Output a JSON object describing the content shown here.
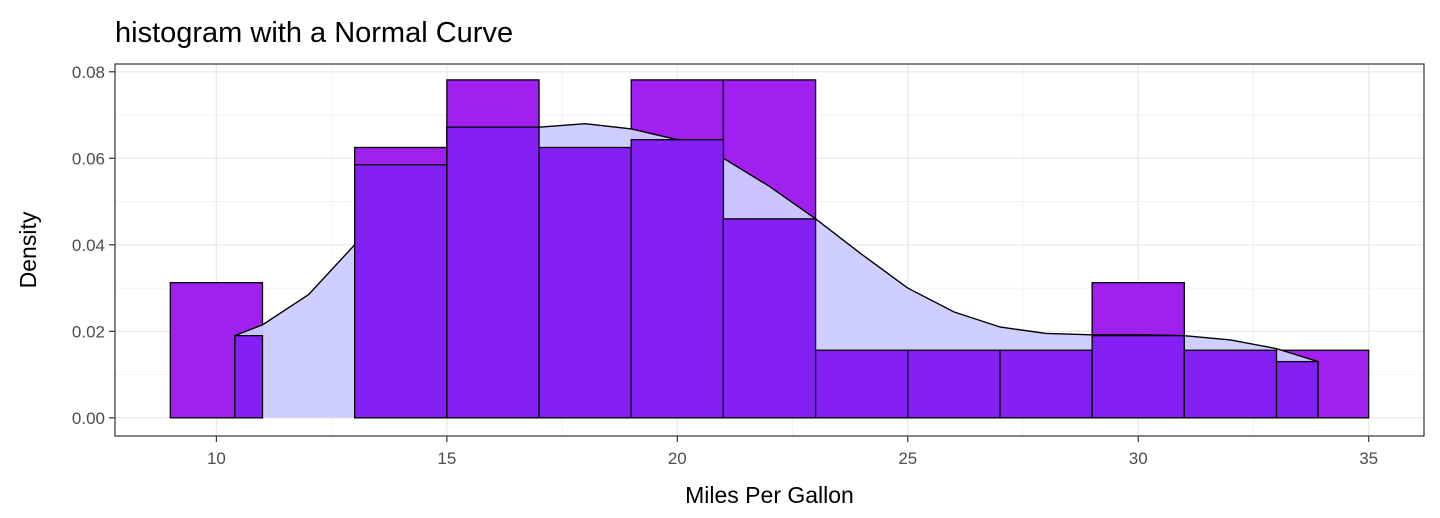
{
  "chart_data": {
    "type": "bar",
    "title": "histogram with a Normal Curve",
    "xlabel": "Miles Per Gallon",
    "ylabel": "Density",
    "xlim": [
      7.8,
      36.2
    ],
    "ylim": [
      -0.0042,
      0.0818
    ],
    "x_ticks": [
      10,
      15,
      20,
      25,
      30,
      35
    ],
    "y_ticks": [
      0.0,
      0.02,
      0.04,
      0.06,
      0.08
    ],
    "y_tick_labels": [
      "0.00",
      "0.02",
      "0.04",
      "0.06",
      "0.08"
    ],
    "grid": true,
    "histogram_bins": {
      "name": "histogram",
      "color": "#a020f0",
      "bins": [
        {
          "x0": 9,
          "x1": 11,
          "density": 0.03125
        },
        {
          "x0": 11,
          "x1": 13,
          "density": 0.0
        },
        {
          "x0": 13,
          "x1": 15,
          "density": 0.0625
        },
        {
          "x0": 15,
          "x1": 17,
          "density": 0.078125
        },
        {
          "x0": 17,
          "x1": 19,
          "density": 0.0625
        },
        {
          "x0": 19,
          "x1": 21,
          "density": 0.078125
        },
        {
          "x0": 21,
          "x1": 23,
          "density": 0.078125
        },
        {
          "x0": 23,
          "x1": 25,
          "density": 0.015625
        },
        {
          "x0": 25,
          "x1": 27,
          "density": 0.015625
        },
        {
          "x0": 27,
          "x1": 29,
          "density": 0.015625
        },
        {
          "x0": 29,
          "x1": 31,
          "density": 0.03125
        },
        {
          "x0": 31,
          "x1": 33,
          "density": 0.015625
        },
        {
          "x0": 33,
          "x1": 35,
          "density": 0.015625
        }
      ]
    },
    "density_curve": {
      "name": "density",
      "fill": "#ccccff",
      "points": [
        {
          "x": 10.4,
          "y": 0.019
        },
        {
          "x": 11.0,
          "y": 0.0215
        },
        {
          "x": 12.0,
          "y": 0.0285
        },
        {
          "x": 13.0,
          "y": 0.04
        },
        {
          "x": 14.0,
          "y": 0.0505
        },
        {
          "x": 15.0,
          "y": 0.0585
        },
        {
          "x": 16.0,
          "y": 0.0645
        },
        {
          "x": 17.0,
          "y": 0.0672
        },
        {
          "x": 18.0,
          "y": 0.068
        },
        {
          "x": 19.0,
          "y": 0.0668
        },
        {
          "x": 20.0,
          "y": 0.0643
        },
        {
          "x": 21.0,
          "y": 0.06
        },
        {
          "x": 22.0,
          "y": 0.0535
        },
        {
          "x": 23.0,
          "y": 0.046
        },
        {
          "x": 24.0,
          "y": 0.0378
        },
        {
          "x": 25.0,
          "y": 0.03
        },
        {
          "x": 26.0,
          "y": 0.0245
        },
        {
          "x": 27.0,
          "y": 0.021
        },
        {
          "x": 28.0,
          "y": 0.0195
        },
        {
          "x": 29.0,
          "y": 0.0192
        },
        {
          "x": 30.0,
          "y": 0.0192
        },
        {
          "x": 31.0,
          "y": 0.019
        },
        {
          "x": 32.0,
          "y": 0.018
        },
        {
          "x": 33.0,
          "y": 0.016
        },
        {
          "x": 33.9,
          "y": 0.013
        }
      ]
    },
    "overlay_bins": {
      "name": "overlay",
      "color": "#8420f4",
      "bins": [
        {
          "x0": 10.4,
          "x1": 11,
          "density": 0.019
        },
        {
          "x0": 13,
          "x1": 15,
          "density": 0.0585
        },
        {
          "x0": 15,
          "x1": 17,
          "density": 0.0672
        },
        {
          "x0": 17,
          "x1": 19,
          "density": 0.0625
        },
        {
          "x0": 19,
          "x1": 21,
          "density": 0.0643
        },
        {
          "x0": 21,
          "x1": 23,
          "density": 0.046
        },
        {
          "x0": 23,
          "x1": 25,
          "density": 0.015625
        },
        {
          "x0": 25,
          "x1": 27,
          "density": 0.015625
        },
        {
          "x0": 27,
          "x1": 29,
          "density": 0.015625
        },
        {
          "x0": 29,
          "x1": 31,
          "density": 0.019
        },
        {
          "x0": 31,
          "x1": 33,
          "density": 0.015625
        },
        {
          "x0": 33,
          "x1": 33.9,
          "density": 0.013
        }
      ]
    }
  }
}
